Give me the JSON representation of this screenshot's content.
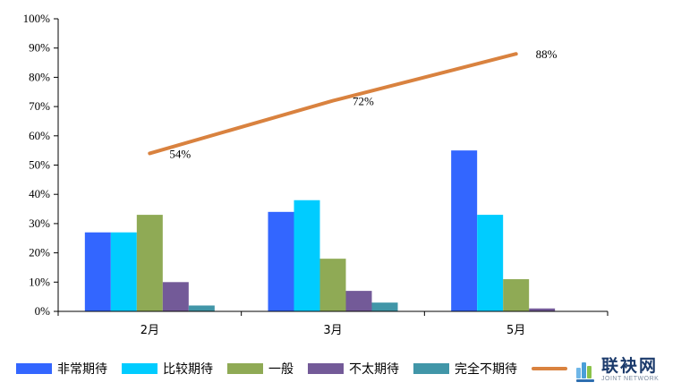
{
  "chart_data": {
    "type": "bar",
    "categories": [
      "2月",
      "3月",
      "5月"
    ],
    "ylim": [
      0,
      100
    ],
    "y_ticks": [
      "0%",
      "10%",
      "20%",
      "30%",
      "40%",
      "50%",
      "60%",
      "70%",
      "80%",
      "90%",
      "100%"
    ],
    "grid": false,
    "legend_position": "bottom",
    "series": [
      {
        "name": "非常期待",
        "values": [
          27,
          34,
          55
        ],
        "color": "#3366ff"
      },
      {
        "name": "比较期待",
        "values": [
          27,
          38,
          33
        ],
        "color": "#00ccff"
      },
      {
        "name": "一般",
        "values": [
          33,
          18,
          11
        ],
        "color": "#8faa55"
      },
      {
        "name": "不太期待",
        "values": [
          10,
          7,
          1
        ],
        "color": "#735a98"
      },
      {
        "name": "完全不期待",
        "values": [
          2,
          3,
          0
        ],
        "color": "#4196a8"
      }
    ],
    "line_series": {
      "name": "",
      "type": "line",
      "values": [
        54,
        72,
        88
      ],
      "labels": [
        "54%",
        "72%",
        "88%"
      ],
      "color": "#d9823f"
    }
  },
  "watermark": {
    "text_cn": "联袂网",
    "text_en": "JOINT NETWORK"
  }
}
